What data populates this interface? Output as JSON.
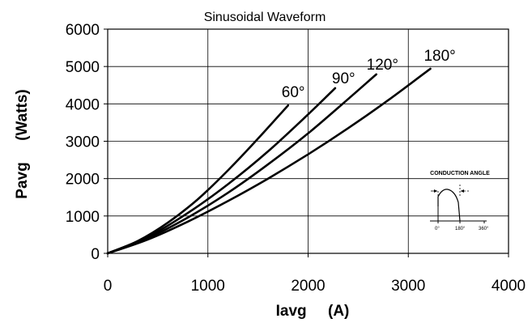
{
  "chart_data": {
    "type": "line",
    "title": "Sinusoidal Waveform",
    "xlabel": "Iavg     (A)",
    "ylabel": "Pavg     (Watts)",
    "xlim": [
      0,
      4000
    ],
    "ylim": [
      0,
      6000
    ],
    "x_ticks": [
      "0",
      "1000",
      "2000",
      "3000",
      "4000"
    ],
    "y_ticks": [
      "0",
      "1000",
      "2000",
      "3000",
      "4000",
      "5000",
      "6000"
    ],
    "grid": true,
    "series": [
      {
        "name": "60°",
        "x": [
          0,
          300,
          600,
          900,
          1200,
          1500,
          1800
        ],
        "y": [
          0,
          330,
          820,
          1450,
          2220,
          3070,
          3960
        ]
      },
      {
        "name": "90°",
        "x": [
          0,
          400,
          800,
          1200,
          1600,
          2000,
          2270
        ],
        "y": [
          0,
          440,
          1080,
          1850,
          2730,
          3720,
          4420
        ]
      },
      {
        "name": "120°",
        "x": [
          0,
          400,
          800,
          1200,
          1600,
          2000,
          2400,
          2680
        ],
        "y": [
          0,
          410,
          960,
          1620,
          2380,
          3210,
          4130,
          4790
        ]
      },
      {
        "name": "180°",
        "x": [
          0,
          400,
          800,
          1200,
          1600,
          2000,
          2400,
          2800,
          3220
        ],
        "y": [
          0,
          370,
          850,
          1400,
          2000,
          2650,
          3350,
          4100,
          4940
        ]
      }
    ],
    "inset": {
      "title": "CONDUCTION ANGLE",
      "ticks": [
        "0°",
        "180°",
        "360°"
      ]
    }
  }
}
